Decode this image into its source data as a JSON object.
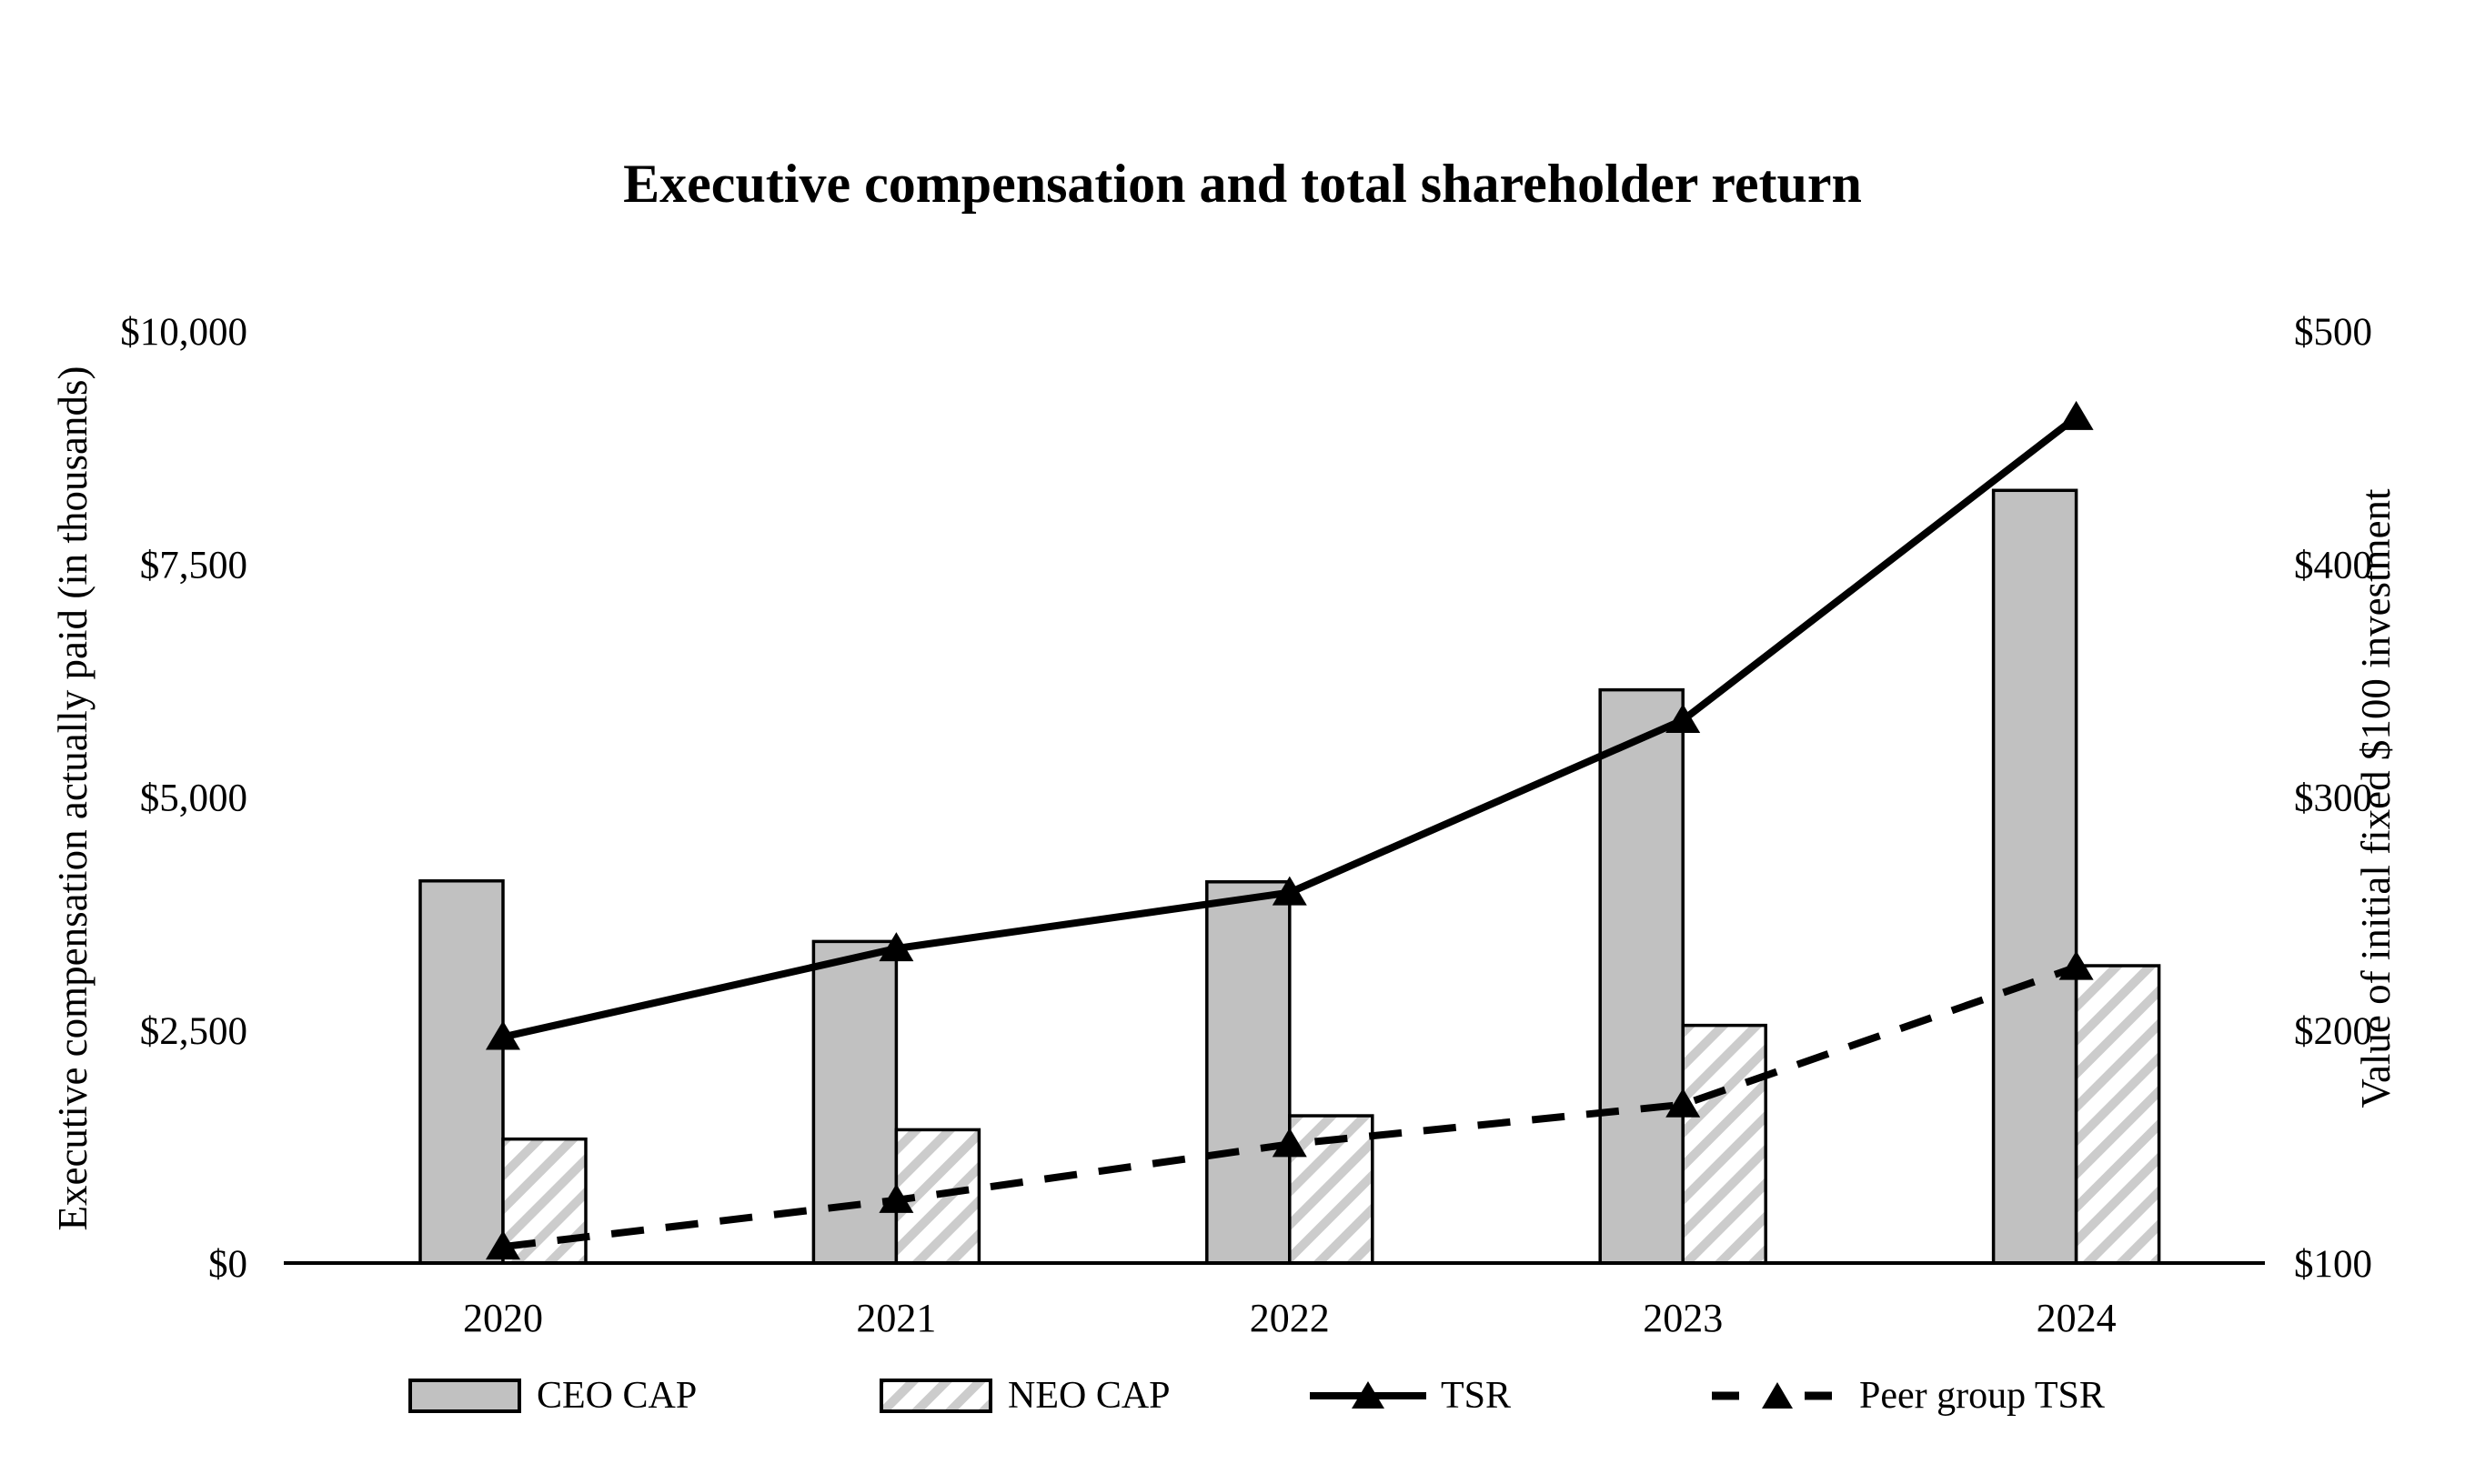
{
  "title": "Executive compensation and total shareholder return",
  "colors": {
    "background": "#ffffff",
    "ink": "#000000",
    "bar_fill": "#c1c1c1",
    "hatch_stripe": "#cccccc",
    "hatch_bg": "#ffffff"
  },
  "chart_data": {
    "type": "bar",
    "subtype": "grouped-bars-with-two-lines-dual-axis",
    "title": "Executive compensation and total shareholder return",
    "categories": [
      "2020",
      "2021",
      "2022",
      "2023",
      "2024"
    ],
    "series": [
      {
        "name": "CEO CAP",
        "kind": "bar",
        "axis": "left",
        "style": "solid-gray",
        "values": [
          4100,
          3450,
          4090,
          6150,
          8290
        ]
      },
      {
        "name": "NEO CAP",
        "kind": "bar",
        "axis": "left",
        "style": "hatched",
        "values": [
          1330,
          1430,
          1580,
          2550,
          3190
        ]
      },
      {
        "name": "TSR",
        "kind": "line",
        "axis": "right",
        "style": "solid-triangle-markers",
        "values": [
          197,
          235,
          259,
          333,
          463
        ]
      },
      {
        "name": "Peer group TSR",
        "kind": "line",
        "axis": "right",
        "style": "dashed-triangle-markers",
        "values": [
          107,
          127,
          151,
          168,
          227
        ]
      }
    ],
    "left_axis": {
      "title": "Executive compensation actually paid (in thousands)",
      "min": 0,
      "max": 10000,
      "tick_values": [
        0,
        2500,
        5000,
        7500,
        10000
      ],
      "tick_labels": [
        "$0",
        "$2,500",
        "$5,000",
        "$7,500",
        "$10,000"
      ]
    },
    "right_axis": {
      "title": "Value of initial fixed $100 investment",
      "min": 100,
      "max": 500,
      "tick_values": [
        100,
        200,
        300,
        400,
        500
      ],
      "tick_labels": [
        "$100",
        "$200",
        "$300",
        "$400",
        "$500"
      ]
    },
    "legend": [
      "CEO CAP",
      "NEO CAP",
      "TSR",
      "Peer group TSR"
    ],
    "legend_position": "bottom",
    "grid": false
  }
}
